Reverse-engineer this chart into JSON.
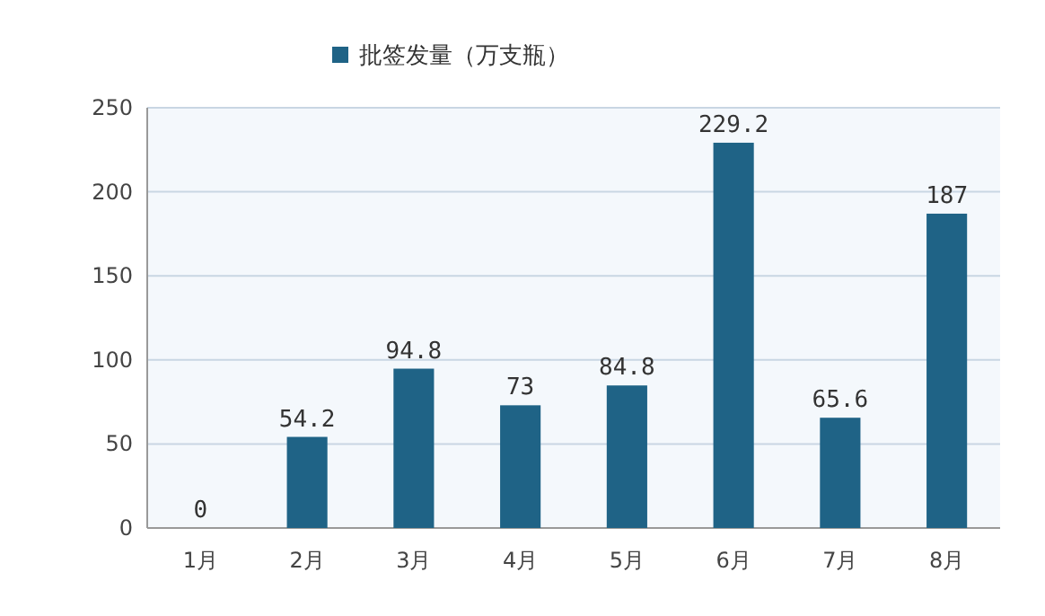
{
  "chart_data": {
    "type": "bar",
    "categories": [
      "1月",
      "2月",
      "3月",
      "4月",
      "5月",
      "6月",
      "7月",
      "8月"
    ],
    "series": [
      {
        "name": "批签发量（万支瓶）",
        "color": "#1f6386",
        "values": [
          0,
          54.2,
          94.8,
          73,
          84.8,
          229.2,
          65.6,
          187
        ]
      }
    ],
    "ylim": [
      0,
      250
    ],
    "yticks": [
      0,
      50,
      100,
      150,
      200,
      250
    ],
    "grid": "y",
    "legend": "top",
    "data_labels": true
  }
}
